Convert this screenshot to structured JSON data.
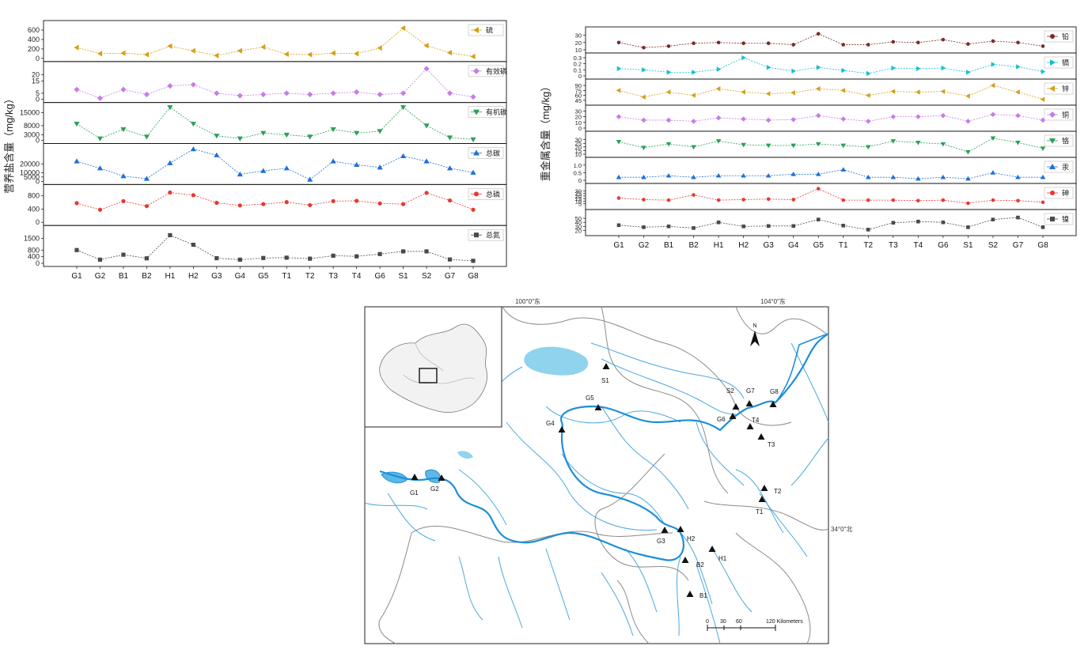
{
  "chart_data": [
    {
      "type": "line",
      "ylabel": "营养盐含量（mg/kg）",
      "categories": [
        "G1",
        "G2",
        "B1",
        "B2",
        "H1",
        "H2",
        "G3",
        "G4",
        "G5",
        "T1",
        "T2",
        "T3",
        "T4",
        "G6",
        "S1",
        "S2",
        "G7",
        "G8"
      ],
      "panels": [
        {
          "name": "硫",
          "color": "#d4a017",
          "marker": "triangle-left",
          "ticks": [
            "600",
            "400",
            "200",
            "0"
          ],
          "ylim": [
            0,
            700
          ],
          "values": [
            230,
            100,
            110,
            80,
            260,
            160,
            60,
            160,
            240,
            90,
            80,
            110,
            100,
            220,
            640,
            270,
            120,
            40
          ]
        },
        {
          "name": "有效磷",
          "color": "#c77ce8",
          "marker": "diamond",
          "ticks": [
            "20",
            "15",
            "5",
            "0"
          ],
          "ylim": [
            0,
            27
          ],
          "values": [
            8,
            1,
            8,
            4,
            11,
            12,
            5,
            3,
            4,
            5,
            4,
            5,
            6,
            4,
            5,
            25,
            5,
            2
          ]
        },
        {
          "name": "有机碳",
          "color": "#2ca05a",
          "marker": "triangle-down",
          "ticks": [
            "15000",
            "8000",
            "3000",
            "0"
          ],
          "ylim": [
            0,
            18000
          ],
          "values": [
            9000,
            1000,
            6000,
            2000,
            18000,
            9000,
            2500,
            1000,
            4000,
            3000,
            2000,
            6000,
            4000,
            5000,
            18000,
            8000,
            1500,
            500
          ]
        },
        {
          "name": "总碳",
          "color": "#1f6fd6",
          "marker": "triangle-up",
          "ticks": [
            "20000",
            "10000",
            "5000",
            "0"
          ],
          "ylim": [
            0,
            38000
          ],
          "values": [
            23000,
            15000,
            6000,
            3000,
            21000,
            37000,
            30000,
            8000,
            12000,
            15000,
            2000,
            23000,
            19000,
            16000,
            29000,
            23000,
            15000,
            10000
          ]
        },
        {
          "name": "总磷",
          "color": "#e8392e",
          "marker": "circle",
          "ticks": [
            "800",
            "400",
            "0"
          ],
          "ylim": [
            0,
            1000
          ],
          "values": [
            580,
            380,
            640,
            490,
            900,
            820,
            590,
            510,
            550,
            610,
            520,
            640,
            650,
            570,
            550,
            890,
            660,
            380
          ]
        },
        {
          "name": "总氮",
          "color": "#4a4a4a",
          "marker": "square",
          "ticks": [
            "1500",
            "800",
            "400",
            "0"
          ],
          "ylim": [
            0,
            2000
          ],
          "values": [
            800,
            220,
            520,
            300,
            1700,
            1120,
            310,
            220,
            320,
            340,
            280,
            460,
            420,
            560,
            720,
            720,
            230,
            150
          ]
        }
      ]
    },
    {
      "type": "line",
      "ylabel": "重金属含量（mg/kg）",
      "categories": [
        "G1",
        "G2",
        "B1",
        "B2",
        "H1",
        "H2",
        "G3",
        "G4",
        "G5",
        "T1",
        "T2",
        "T3",
        "T4",
        "G6",
        "S1",
        "S2",
        "G7",
        "G8"
      ],
      "panels": [
        {
          "name": "铅",
          "color": "#7a2a2a",
          "marker": "circle",
          "ticks": [
            "30",
            "20",
            "10"
          ],
          "ylim": [
            10,
            35
          ],
          "values": [
            20,
            13,
            15,
            19,
            20,
            19,
            19,
            17,
            32,
            17,
            17,
            21,
            20,
            24,
            18,
            22,
            20,
            15
          ]
        },
        {
          "name": "镉",
          "color": "#17bfd0",
          "marker": "triangle-right",
          "ticks": [
            "0.3",
            "0.2",
            "0.1",
            "0"
          ],
          "ylim": [
            0,
            0.3
          ],
          "values": [
            0.12,
            0.1,
            0.06,
            0.06,
            0.11,
            0.3,
            0.14,
            0.08,
            0.14,
            0.09,
            0.04,
            0.13,
            0.12,
            0.13,
            0.06,
            0.19,
            0.15,
            0.07
          ]
        },
        {
          "name": "锌",
          "color": "#d4a017",
          "marker": "triangle-left",
          "ticks": [
            "90",
            "75",
            "60",
            "45"
          ],
          "ylim": [
            40,
            95
          ],
          "values": [
            75,
            55,
            70,
            60,
            80,
            70,
            65,
            68,
            80,
            75,
            60,
            72,
            70,
            72,
            58,
            90,
            70,
            48
          ]
        },
        {
          "name": "铜",
          "color": "#c77ce8",
          "marker": "diamond",
          "ticks": [
            "30",
            "20",
            "10",
            "0"
          ],
          "ylim": [
            0,
            32
          ],
          "values": [
            20,
            14,
            14,
            12,
            18,
            16,
            14,
            15,
            22,
            16,
            12,
            20,
            20,
            22,
            12,
            24,
            22,
            14
          ]
        },
        {
          "name": "铬",
          "color": "#2ca05a",
          "marker": "triangle-down",
          "ticks": [
            "30",
            "25",
            "20",
            "15",
            "10"
          ],
          "ylim": [
            10,
            35
          ],
          "values": [
            27,
            19,
            24,
            20,
            28,
            23,
            22,
            22,
            24,
            22,
            20,
            28,
            26,
            24,
            13,
            32,
            26,
            18
          ]
        },
        {
          "name": "汞",
          "color": "#1f6fd6",
          "marker": "triangle-up",
          "ticks": [
            "1.0",
            "0.5",
            "0"
          ],
          "ylim": [
            0,
            1.2
          ],
          "values": [
            0.2,
            0.2,
            0.3,
            0.2,
            0.3,
            0.3,
            0.3,
            0.4,
            0.4,
            0.7,
            0.2,
            0.2,
            0.1,
            0.2,
            0.1,
            0.5,
            0.2,
            0.2
          ]
        },
        {
          "name": "砷",
          "color": "#e8392e",
          "marker": "circle",
          "ticks": [
            "30",
            "25",
            "20",
            "15",
            "10",
            "5"
          ],
          "ylim": [
            0,
            35
          ],
          "values": [
            16,
            13,
            12,
            22,
            12,
            13,
            14,
            13,
            34,
            12,
            12,
            12,
            11,
            12,
            6,
            12,
            11,
            8
          ]
        },
        {
          "name": "镍",
          "color": "#4a4a4a",
          "marker": "square",
          "ticks": [
            "50",
            "40",
            "30",
            "20"
          ],
          "ylim": [
            15,
            60
          ],
          "values": [
            33,
            28,
            30,
            26,
            40,
            30,
            31,
            31,
            47,
            32,
            22,
            39,
            42,
            40,
            28,
            47,
            52,
            28
          ]
        }
      ]
    }
  ],
  "map": {
    "lon_labels": [
      "100°0″东",
      "104°0″东"
    ],
    "lat_label": "34°0″北",
    "north": "N",
    "scale_labels": [
      "0",
      "30",
      "60",
      "120 Kilometers"
    ],
    "sites": [
      "S1",
      "S2",
      "G7",
      "G8",
      "G6",
      "T4",
      "T3",
      "G5",
      "G4",
      "G1",
      "G2",
      "T2",
      "T1",
      "G3",
      "H2",
      "H1",
      "B2",
      "B1"
    ]
  }
}
